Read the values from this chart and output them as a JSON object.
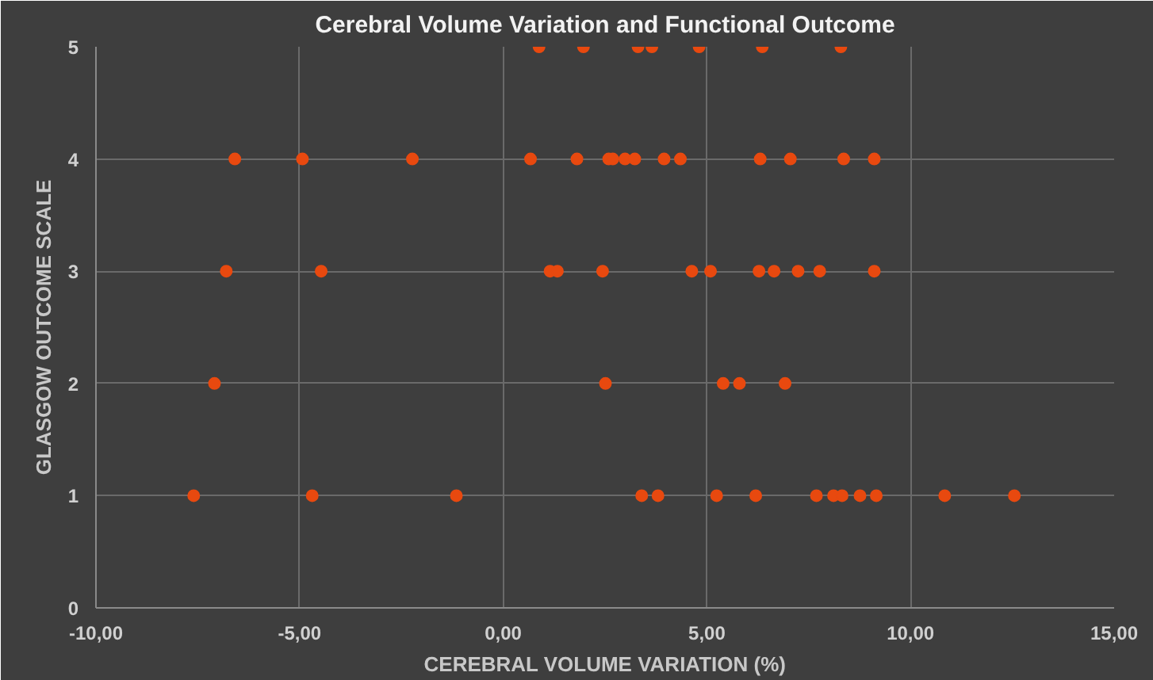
{
  "chart_data": {
    "type": "scatter",
    "title": "Cerebral Volume Variation and Functional Outcome",
    "xlabel": "CEREBRAL VOLUME VARIATION (%)",
    "ylabel": "GLASGOW OUTCOME SCALE",
    "series": [
      {
        "color": "#e8490f",
        "x": [
          0.88,
          1.97,
          3.31,
          3.65,
          4.81,
          6.36,
          8.29,
          -6.59,
          -4.93,
          -2.23,
          0.67,
          1.81,
          2.59,
          2.69,
          2.99,
          3.23,
          3.95,
          4.35,
          6.31,
          7.05,
          8.36,
          9.11,
          -6.8,
          -4.47,
          1.15,
          1.33,
          2.44,
          4.63,
          5.09,
          6.28,
          6.65,
          7.24,
          7.77,
          9.11,
          -7.09,
          2.51,
          5.4,
          5.8,
          6.92,
          -7.6,
          -4.69,
          -1.15,
          3.4,
          3.8,
          5.24,
          6.2,
          7.69,
          8.11,
          8.32,
          8.76,
          9.16,
          10.84,
          12.55
        ],
        "values": [
          5,
          5,
          5,
          5,
          5,
          5,
          5,
          4,
          4,
          4,
          4,
          4,
          4,
          4,
          4,
          4,
          4,
          4,
          4,
          4,
          4,
          4,
          3,
          3,
          3,
          3,
          3,
          3,
          3,
          3,
          3,
          3,
          3,
          3,
          2,
          2,
          2,
          2,
          2,
          1,
          1,
          1,
          1,
          1,
          1,
          1,
          1,
          1,
          1,
          1,
          1,
          1,
          1
        ]
      }
    ],
    "xlim": [
      -10,
      15
    ],
    "ylim": [
      0,
      5
    ],
    "xticks": [
      {
        "value": -10,
        "label": "-10,00"
      },
      {
        "value": -5,
        "label": "-5,00"
      },
      {
        "value": 0,
        "label": "0,00"
      },
      {
        "value": 5,
        "label": "5,00"
      },
      {
        "value": 10,
        "label": "10,00"
      },
      {
        "value": 15,
        "label": "15,00"
      }
    ],
    "yticks": [
      0,
      1,
      2,
      3,
      4,
      5
    ],
    "grid": true,
    "marker": "circle"
  }
}
